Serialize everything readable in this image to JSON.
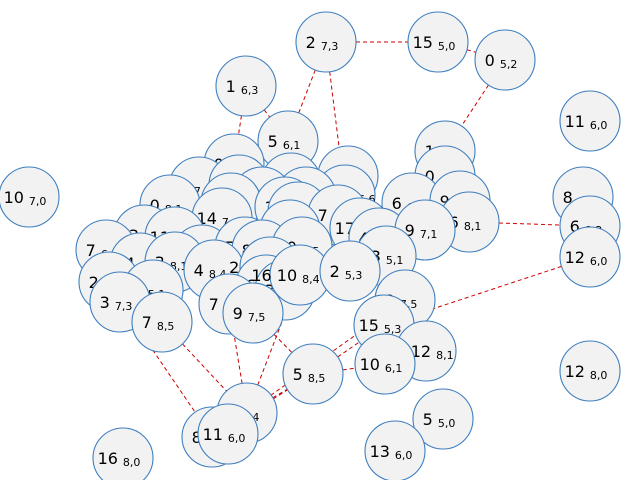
{
  "graph": {
    "nodes": [
      {
        "id": "2_7_3",
        "main": "2",
        "sub": "7,3"
      },
      {
        "id": "15_5_0",
        "main": "15",
        "sub": "5,0"
      },
      {
        "id": "0_5_2",
        "main": "0",
        "sub": "5,2"
      },
      {
        "id": "1_6_3",
        "main": "1",
        "sub": "6,3"
      },
      {
        "id": "11_6_0",
        "main": "11",
        "sub": "6,0"
      },
      {
        "id": "5_6_1",
        "main": "5",
        "sub": "6,1"
      },
      {
        "id": "1_6_1",
        "main": "1",
        "sub": "6,1"
      },
      {
        "id": "0_6_1",
        "main": "0",
        "sub": "6,1"
      },
      {
        "id": "0_6_2",
        "main": "0",
        "sub": "6,2"
      },
      {
        "id": "10_7_0",
        "main": "10",
        "sub": "7,0"
      },
      {
        "id": "6_8_5",
        "main": "6",
        "sub": "8,5"
      },
      {
        "id": "4_7_4",
        "main": "4",
        "sub": "7,4"
      },
      {
        "id": "7_8_2",
        "main": "7",
        "sub": "8,2"
      },
      {
        "id": "8_7_5",
        "main": "8",
        "sub": "7,5"
      },
      {
        "id": "1_5_6_6",
        "main": "1 5",
        "sub": "7,2 6,6"
      },
      {
        "id": "8_6_0",
        "main": "8",
        "sub": "6,0"
      },
      {
        "id": "0_8_1",
        "main": "0",
        "sub": "8,1"
      },
      {
        "id": "5_6_4",
        "main": "5",
        "sub": "6,4"
      },
      {
        "id": "9_8_3",
        "main": "9",
        "sub": "8,3"
      },
      {
        "id": "6_6_1",
        "main": "6",
        "sub": "6,1"
      },
      {
        "id": "9_5_2",
        "main": "9",
        "sub": "5,2"
      },
      {
        "id": "6_8_1",
        "main": "6",
        "sub": "8,1"
      },
      {
        "id": "6_8_2",
        "main": "6",
        "sub": "8,2"
      },
      {
        "id": "7_7_6",
        "main": "7",
        "sub": "7,6"
      },
      {
        "id": "3_5_1",
        "main": "3",
        "sub": "5,1"
      },
      {
        "id": "3_6_2",
        "main": "3",
        "sub": "6,2"
      },
      {
        "id": "7_6_2",
        "main": "7",
        "sub": "6,2"
      },
      {
        "id": "14_7_4",
        "main": "14",
        "sub": "7,4"
      },
      {
        "id": "13_5_1a",
        "main": "13",
        "sub": "5,1"
      },
      {
        "id": "11_5_1",
        "main": "11",
        "sub": "5,1"
      },
      {
        "id": "11_4_7_5",
        "main": "114",
        "sub": "7,5"
      },
      {
        "id": "17_6_6",
        "main": "17",
        "sub": "6,6"
      },
      {
        "id": "4_6_6",
        "main": "4",
        "sub": "6,6"
      },
      {
        "id": "9_7_1",
        "main": "9",
        "sub": "7,1"
      },
      {
        "id": "7_6_1",
        "main": "7",
        "sub": "6,1"
      },
      {
        "id": "2_8_1",
        "main": "2",
        "sub": "8,1"
      },
      {
        "id": "5_8_6",
        "main": "5",
        "sub": "8,6"
      },
      {
        "id": "8_8_6",
        "main": "8",
        "sub": "8,6"
      },
      {
        "id": "10_6_5",
        "main": "10",
        "sub": "6,5"
      },
      {
        "id": "13_5_1b",
        "main": "13",
        "sub": "5,1"
      },
      {
        "id": "12_6_0",
        "main": "12",
        "sub": "6,0"
      },
      {
        "id": "14_7_3",
        "main": "14",
        "sub": "7,3"
      },
      {
        "id": "3_8_1",
        "main": "3",
        "sub": "8,1"
      },
      {
        "id": "2_6_1",
        "main": "2",
        "sub": "6,1"
      },
      {
        "id": "4_8_4",
        "main": "4",
        "sub": "8,4"
      },
      {
        "id": "2_4_1",
        "main": "2 4 1",
        "sub": "5 3 5"
      },
      {
        "id": "6_8_3",
        "main": "6",
        "sub": "8,3"
      },
      {
        "id": "3_8_5",
        "main": "3",
        "sub": "8,5"
      },
      {
        "id": "16_10",
        "main": "16 10",
        "sub": "8,4 6,4"
      },
      {
        "id": "2_5_3",
        "main": "2",
        "sub": "5,3"
      },
      {
        "id": "4_5_1",
        "main": "4",
        "sub": "5,1"
      },
      {
        "id": "3_7_3",
        "main": "3",
        "sub": "7,3"
      },
      {
        "id": "7_8_3",
        "main": "7",
        "sub": "8,3"
      },
      {
        "id": "0_7_5",
        "main": "0",
        "sub": "7,5"
      },
      {
        "id": "7_8_5",
        "main": "7",
        "sub": "8,5"
      },
      {
        "id": "9_7_5",
        "main": "9",
        "sub": "7,5"
      },
      {
        "id": "15_5_3",
        "main": "15",
        "sub": "5,3"
      },
      {
        "id": "11_12_8_1",
        "main": "1112",
        "sub": "8,1"
      },
      {
        "id": "10_6_1",
        "main": "10",
        "sub": "6,1"
      },
      {
        "id": "12_8_0",
        "main": "12",
        "sub": "8,0"
      },
      {
        "id": "5_8_5",
        "main": "5",
        "sub": "8,5"
      },
      {
        "id": "2_6_4",
        "main": "2",
        "sub": "6,4"
      },
      {
        "id": "5_5_0",
        "main": "5",
        "sub": "5,0"
      },
      {
        "id": "8_5_4",
        "main": "8",
        "sub": "5,4"
      },
      {
        "id": "11_6_0b",
        "main": "11",
        "sub": "6,0"
      },
      {
        "id": "16_8_0",
        "main": "16",
        "sub": "8,0"
      },
      {
        "id": "13_6_0",
        "main": "13",
        "sub": "6,0"
      }
    ],
    "edges": [
      [
        "2_7_3",
        "15_5_0"
      ],
      [
        "15_5_0",
        "0_5_2"
      ],
      [
        "0_5_2",
        "1_6_1"
      ],
      [
        "2_7_3",
        "5_6_1"
      ],
      [
        "2_7_3",
        "1_5_6_6"
      ],
      [
        "1_6_3",
        "5_6_1"
      ],
      [
        "1_6_3",
        "0_6_1"
      ],
      [
        "6_8_1",
        "6_8_2"
      ],
      [
        "13_5_1b",
        "15_5_3"
      ],
      [
        "12_6_0",
        "15_5_3"
      ],
      [
        "7_8_5",
        "2_6_4"
      ],
      [
        "3_7_3",
        "8_5_4"
      ],
      [
        "9_7_5",
        "5_8_5"
      ],
      [
        "2_6_4",
        "5_8_5"
      ],
      [
        "2_6_4",
        "7_8_3"
      ],
      [
        "5_8_5",
        "15_5_3"
      ],
      [
        "5_8_5",
        "10_6_1"
      ],
      [
        "8_5_4",
        "5_8_5"
      ],
      [
        "8_5_4",
        "0_7_5"
      ],
      [
        "2_6_4",
        "16_10"
      ],
      [
        "9_7_5",
        "2_5_3"
      ]
    ]
  }
}
